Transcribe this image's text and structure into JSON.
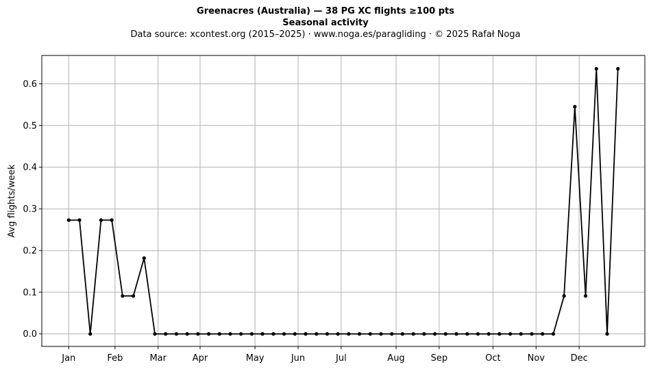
{
  "chart_data": {
    "type": "line",
    "title": "Greenacres (Australia)  —  38 PG XC flights ≥100 pts",
    "subtitle": "Seasonal activity",
    "source_line": "Data source: xcontest.org (2015–2025)  ·  www.noga.es/paragliding  ·  © 2025 Rafał Noga",
    "xlabel": "",
    "ylabel": "Avg flights/week",
    "x_ticks": [
      {
        "label": "Jan",
        "week": 1
      },
      {
        "label": "Feb",
        "week": 5.3
      },
      {
        "label": "Mar",
        "week": 9.3
      },
      {
        "label": "Apr",
        "week": 13.2
      },
      {
        "label": "May",
        "week": 18.3
      },
      {
        "label": "Jun",
        "week": 22.3
      },
      {
        "label": "Jul",
        "week": 26.3
      },
      {
        "label": "Aug",
        "week": 31.4
      },
      {
        "label": "Sep",
        "week": 35.4
      },
      {
        "label": "Oct",
        "week": 40.4
      },
      {
        "label": "Nov",
        "week": 44.4
      },
      {
        "label": "Dec",
        "week": 48.4
      }
    ],
    "y_ticks": [
      0.0,
      0.1,
      0.2,
      0.3,
      0.4,
      0.5,
      0.6
    ],
    "y_tick_labels": [
      "0.0",
      "0.1",
      "0.2",
      "0.3",
      "0.4",
      "0.5",
      "0.6"
    ],
    "xlim": [
      -1.5,
      54.5
    ],
    "ylim": [
      -0.03,
      0.668
    ],
    "grid": true,
    "line_color": "#000000",
    "grid_color": "#b0b0b0",
    "series": [
      {
        "x": [
          1,
          2,
          3,
          4,
          5,
          6,
          7,
          8,
          9,
          10,
          11,
          12,
          13,
          14,
          15,
          16,
          17,
          18,
          19,
          20,
          21,
          22,
          23,
          24,
          25,
          26,
          27,
          28,
          29,
          30,
          31,
          32,
          33,
          34,
          35,
          36,
          37,
          38,
          39,
          40,
          41,
          42,
          43,
          44,
          45,
          46,
          47,
          48,
          49,
          50,
          51,
          52
        ],
        "values": [
          0.273,
          0.273,
          0.0,
          0.273,
          0.273,
          0.091,
          0.091,
          0.182,
          0.0,
          0.0,
          0.0,
          0.0,
          0.0,
          0.0,
          0.0,
          0.0,
          0.0,
          0.0,
          0.0,
          0.0,
          0.0,
          0.0,
          0.0,
          0.0,
          0.0,
          0.0,
          0.0,
          0.0,
          0.0,
          0.0,
          0.0,
          0.0,
          0.0,
          0.0,
          0.0,
          0.0,
          0.0,
          0.0,
          0.0,
          0.0,
          0.0,
          0.0,
          0.0,
          0.0,
          0.0,
          0.0,
          0.091,
          0.545,
          0.091,
          0.636,
          0.0,
          0.636
        ]
      }
    ]
  }
}
